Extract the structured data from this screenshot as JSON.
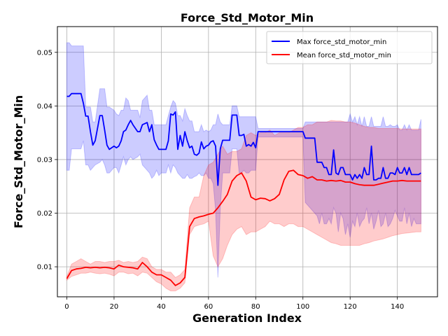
{
  "chart_data": {
    "type": "line",
    "title": "Force_Std_Motor_Min",
    "xlabel": "Generation Index",
    "ylabel": "Force_Std_Motor_Min",
    "xlim": [
      -4,
      157
    ],
    "ylim": [
      0.0044,
      0.0548
    ],
    "xticks": [
      0,
      20,
      40,
      60,
      80,
      100,
      120,
      140
    ],
    "yticks": [
      0.01,
      0.02,
      0.03,
      0.04,
      0.05
    ],
    "ytick_labels": [
      "0.01",
      "0.02",
      "0.03",
      "0.04",
      "0.05"
    ],
    "grid": true,
    "legend_position": "top-right",
    "series": [
      {
        "name": "Max force_std_motor_min",
        "color": "#0000ff",
        "band_color": "#0000ff",
        "x": [
          0,
          1,
          2,
          4,
          6,
          7,
          8,
          9,
          10,
          11,
          12,
          14,
          15,
          16,
          17,
          18,
          20,
          21,
          22,
          23,
          24,
          25,
          26,
          27,
          28,
          30,
          31,
          32,
          34,
          35,
          36,
          37,
          38,
          39,
          40,
          42,
          43,
          44,
          45,
          46,
          47,
          48,
          49,
          50,
          51,
          52,
          53,
          54,
          55,
          56,
          57,
          58,
          59,
          60,
          61,
          62,
          63,
          64,
          65,
          66,
          67,
          68,
          69,
          70,
          71,
          72,
          73,
          74,
          75,
          76,
          77,
          78,
          79,
          80,
          81,
          84,
          87,
          90,
          95,
          100,
          101,
          105,
          106,
          107,
          108,
          109,
          110,
          111,
          112,
          113,
          114,
          115,
          116,
          117,
          118,
          119,
          120,
          121,
          122,
          123,
          124,
          125,
          126,
          127,
          128,
          129,
          130,
          131,
          132,
          133,
          134,
          135,
          136,
          137,
          138,
          139,
          140,
          141,
          142,
          143,
          144,
          145,
          146,
          147,
          148,
          149,
          150
        ],
        "y": [
          0.0418,
          0.0418,
          0.0423,
          0.0423,
          0.0423,
          0.0405,
          0.0381,
          0.0381,
          0.0352,
          0.0327,
          0.0335,
          0.0382,
          0.0382,
          0.0355,
          0.0327,
          0.0319,
          0.0325,
          0.0322,
          0.0325,
          0.0335,
          0.0352,
          0.0355,
          0.0365,
          0.0373,
          0.0365,
          0.0352,
          0.0352,
          0.0365,
          0.0369,
          0.0352,
          0.0365,
          0.0337,
          0.0327,
          0.0319,
          0.0319,
          0.0319,
          0.0335,
          0.0385,
          0.0383,
          0.0389,
          0.0319,
          0.0345,
          0.0325,
          0.0352,
          0.0335,
          0.0322,
          0.0325,
          0.031,
          0.0308,
          0.0312,
          0.0333,
          0.032,
          0.0325,
          0.0327,
          0.0333,
          0.0335,
          0.0325,
          0.0252,
          0.032,
          0.0336,
          0.0336,
          0.0336,
          0.0336,
          0.0383,
          0.0383,
          0.0383,
          0.0345,
          0.0345,
          0.0347,
          0.0325,
          0.0328,
          0.0325,
          0.0332,
          0.0322,
          0.0352,
          0.0352,
          0.0352,
          0.0352,
          0.0352,
          0.0352,
          0.034,
          0.034,
          0.0295,
          0.0295,
          0.0295,
          0.0285,
          0.0285,
          0.0272,
          0.0272,
          0.0318,
          0.0275,
          0.0272,
          0.0285,
          0.0285,
          0.0272,
          0.0272,
          0.0272,
          0.0262,
          0.0272,
          0.0265,
          0.0272,
          0.0265,
          0.0285,
          0.0272,
          0.0272,
          0.0325,
          0.0262,
          0.0262,
          0.0265,
          0.0265,
          0.0285,
          0.0265,
          0.0265,
          0.0275,
          0.0275,
          0.0272,
          0.0285,
          0.0275,
          0.0275,
          0.0285,
          0.0272,
          0.0285,
          0.0272,
          0.0272,
          0.0272,
          0.0272,
          0.0275
        ],
        "upper": [
          0.0518,
          0.0518,
          0.0512,
          0.0512,
          0.0512,
          0.0512,
          0.0398,
          0.0398,
          0.0398,
          0.037,
          0.037,
          0.0432,
          0.0432,
          0.0432,
          0.0398,
          0.0398,
          0.0392,
          0.0385,
          0.0382,
          0.0392,
          0.0392,
          0.0415,
          0.041,
          0.0392,
          0.0392,
          0.0392,
          0.0378,
          0.041,
          0.042,
          0.0392,
          0.0392,
          0.0365,
          0.0365,
          0.0365,
          0.0365,
          0.0365,
          0.0382,
          0.0398,
          0.041,
          0.0405,
          0.0382,
          0.0382,
          0.0372,
          0.0395,
          0.0382,
          0.0372,
          0.0372,
          0.0352,
          0.0352,
          0.0352,
          0.0365,
          0.0352,
          0.0355,
          0.0352,
          0.0355,
          0.0365,
          0.0365,
          0.0385,
          0.037,
          0.0365,
          0.0365,
          0.0365,
          0.0365,
          0.04,
          0.04,
          0.04,
          0.038,
          0.038,
          0.038,
          0.038,
          0.038,
          0.038,
          0.038,
          0.038,
          0.0358,
          0.0358,
          0.0358,
          0.0358,
          0.0358,
          0.0358,
          0.037,
          0.037,
          0.037,
          0.037,
          0.037,
          0.037,
          0.037,
          0.037,
          0.037,
          0.037,
          0.037,
          0.037,
          0.037,
          0.037,
          0.037,
          0.037,
          0.0385,
          0.037,
          0.038,
          0.0365,
          0.038,
          0.0362,
          0.038,
          0.0362,
          0.0362,
          0.038,
          0.0362,
          0.0362,
          0.0362,
          0.0362,
          0.038,
          0.0362,
          0.0362,
          0.0365,
          0.0362,
          0.0362,
          0.0365,
          0.0355,
          0.0355,
          0.0365,
          0.0355,
          0.0365,
          0.0355,
          0.0355,
          0.0355,
          0.0355,
          0.0375
        ],
        "lower": [
          0.028,
          0.028,
          0.032,
          0.032,
          0.032,
          0.0335,
          0.029,
          0.029,
          0.028,
          0.0285,
          0.029,
          0.0295,
          0.03,
          0.029,
          0.0275,
          0.0275,
          0.0285,
          0.0285,
          0.0275,
          0.029,
          0.0305,
          0.029,
          0.03,
          0.0305,
          0.03,
          0.0305,
          0.031,
          0.029,
          0.028,
          0.0275,
          0.0265,
          0.027,
          0.028,
          0.027,
          0.0275,
          0.0275,
          0.029,
          0.0275,
          0.029,
          0.0285,
          0.0275,
          0.027,
          0.0265,
          0.0265,
          0.0272,
          0.0265,
          0.0265,
          0.0268,
          0.027,
          0.0275,
          0.027,
          0.027,
          0.0275,
          0.0265,
          0.0265,
          0.0255,
          0.0205,
          0.008,
          0.021,
          0.0275,
          0.0275,
          0.0275,
          0.0275,
          0.032,
          0.032,
          0.032,
          0.0275,
          0.0275,
          0.028,
          0.0275,
          0.0275,
          0.028,
          0.028,
          0.028,
          0.0342,
          0.0342,
          0.0342,
          0.0342,
          0.0342,
          0.0342,
          0.022,
          0.02,
          0.0195,
          0.018,
          0.02,
          0.018,
          0.018,
          0.019,
          0.018,
          0.021,
          0.02,
          0.0165,
          0.02,
          0.019,
          0.016,
          0.018,
          0.0155,
          0.0185,
          0.0175,
          0.02,
          0.0175,
          0.0185,
          0.019,
          0.021,
          0.018,
          0.02,
          0.017,
          0.0185,
          0.0205,
          0.0175,
          0.018,
          0.02,
          0.0175,
          0.018,
          0.019,
          0.0205,
          0.0195,
          0.0185,
          0.0185,
          0.021,
          0.018,
          0.02,
          0.0175,
          0.019,
          0.018,
          0.018,
          0.018
        ]
      },
      {
        "name": "Mean force_std_motor_min",
        "color": "#ff0000",
        "band_color": "#ff0000",
        "x": [
          0,
          2,
          4,
          6,
          8,
          10,
          12,
          14,
          16,
          18,
          20,
          22,
          24,
          26,
          28,
          30,
          32,
          34,
          36,
          38,
          40,
          42,
          44,
          46,
          48,
          50,
          52,
          54,
          56,
          58,
          60,
          62,
          64,
          66,
          68,
          70,
          72,
          74,
          76,
          78,
          80,
          82,
          84,
          86,
          88,
          90,
          92,
          94,
          96,
          98,
          100,
          102,
          104,
          106,
          108,
          110,
          112,
          114,
          116,
          118,
          120,
          122,
          124,
          126,
          128,
          130,
          132,
          134,
          136,
          138,
          140,
          142,
          144,
          146,
          148,
          150
        ],
        "y": [
          0.0078,
          0.0093,
          0.0096,
          0.0097,
          0.0099,
          0.0098,
          0.0099,
          0.0098,
          0.0099,
          0.0098,
          0.0096,
          0.0103,
          0.01,
          0.0099,
          0.0098,
          0.0096,
          0.0108,
          0.01,
          0.009,
          0.0085,
          0.0085,
          0.008,
          0.0075,
          0.0065,
          0.007,
          0.008,
          0.0175,
          0.019,
          0.0193,
          0.0195,
          0.0198,
          0.02,
          0.021,
          0.0222,
          0.0235,
          0.026,
          0.027,
          0.0275,
          0.026,
          0.023,
          0.0225,
          0.0228,
          0.0227,
          0.0223,
          0.0227,
          0.0235,
          0.0262,
          0.0278,
          0.028,
          0.0272,
          0.027,
          0.0265,
          0.0268,
          0.0262,
          0.0262,
          0.026,
          0.0261,
          0.026,
          0.0261,
          0.0258,
          0.0258,
          0.0255,
          0.0253,
          0.0252,
          0.0252,
          0.0252,
          0.0254,
          0.0256,
          0.0258,
          0.026,
          0.026,
          0.0261,
          0.026,
          0.026,
          0.026,
          0.026
        ],
        "upper": [
          0.0082,
          0.0105,
          0.011,
          0.0115,
          0.011,
          0.0105,
          0.011,
          0.011,
          0.0108,
          0.011,
          0.011,
          0.0112,
          0.0108,
          0.011,
          0.0108,
          0.011,
          0.0118,
          0.0115,
          0.01,
          0.0095,
          0.0095,
          0.009,
          0.009,
          0.008,
          0.0085,
          0.0095,
          0.021,
          0.023,
          0.023,
          0.027,
          0.029,
          0.0295,
          0.031,
          0.0325,
          0.031,
          0.0315,
          0.0315,
          0.032,
          0.0345,
          0.035,
          0.0345,
          0.035,
          0.035,
          0.0355,
          0.0345,
          0.035,
          0.035,
          0.035,
          0.0355,
          0.036,
          0.036,
          0.0365,
          0.0365,
          0.037,
          0.037,
          0.037,
          0.0373,
          0.0372,
          0.0372,
          0.037,
          0.037,
          0.0368,
          0.0365,
          0.0362,
          0.036,
          0.036,
          0.0358,
          0.0358,
          0.0358,
          0.0358,
          0.0358,
          0.0357,
          0.0357,
          0.0357,
          0.0357,
          0.0357
        ],
        "lower": [
          0.0075,
          0.0082,
          0.0085,
          0.0088,
          0.0088,
          0.009,
          0.0088,
          0.0087,
          0.0088,
          0.0086,
          0.0083,
          0.009,
          0.009,
          0.0087,
          0.0088,
          0.0083,
          0.009,
          0.0088,
          0.008,
          0.0072,
          0.0068,
          0.006,
          0.0055,
          0.0055,
          0.006,
          0.007,
          0.016,
          0.0175,
          0.0178,
          0.018,
          0.0185,
          0.012,
          0.01,
          0.0115,
          0.014,
          0.016,
          0.017,
          0.0175,
          0.016,
          0.0165,
          0.0165,
          0.017,
          0.0175,
          0.0185,
          0.018,
          0.018,
          0.0175,
          0.018,
          0.018,
          0.0175,
          0.0175,
          0.017,
          0.0165,
          0.016,
          0.0155,
          0.015,
          0.0145,
          0.0143,
          0.014,
          0.014,
          0.014,
          0.014,
          0.014,
          0.0143,
          0.0145,
          0.0148,
          0.015,
          0.0152,
          0.0155,
          0.0158,
          0.016,
          0.0162,
          0.0163,
          0.0164,
          0.0165,
          0.0165
        ]
      }
    ]
  }
}
